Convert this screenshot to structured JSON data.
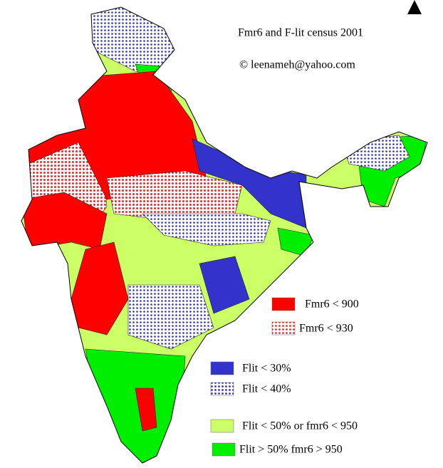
{
  "title": "Fmr6 and F-lit census 2001",
  "credit": "©  leenameh@yahoo.com",
  "legend": [
    {
      "name": "Fmr6 < 900",
      "color": "#ff0000",
      "dotted": false
    },
    {
      "name": "Fmr6 < 930",
      "color": "#e03030",
      "dotted": true
    },
    {
      "name": "Flit < 30%",
      "color": "#3333cc",
      "dotted": false
    },
    {
      "name": "Flit < 40%",
      "color": "#3333aa",
      "dotted": true
    },
    {
      "name": "Flit < 50% or fmr6 < 950",
      "color": "#ccff66",
      "dotted": false
    },
    {
      "name": "Flit > 50% fmr6 > 950",
      "color": "#00ee00",
      "dotted": false
    }
  ]
}
